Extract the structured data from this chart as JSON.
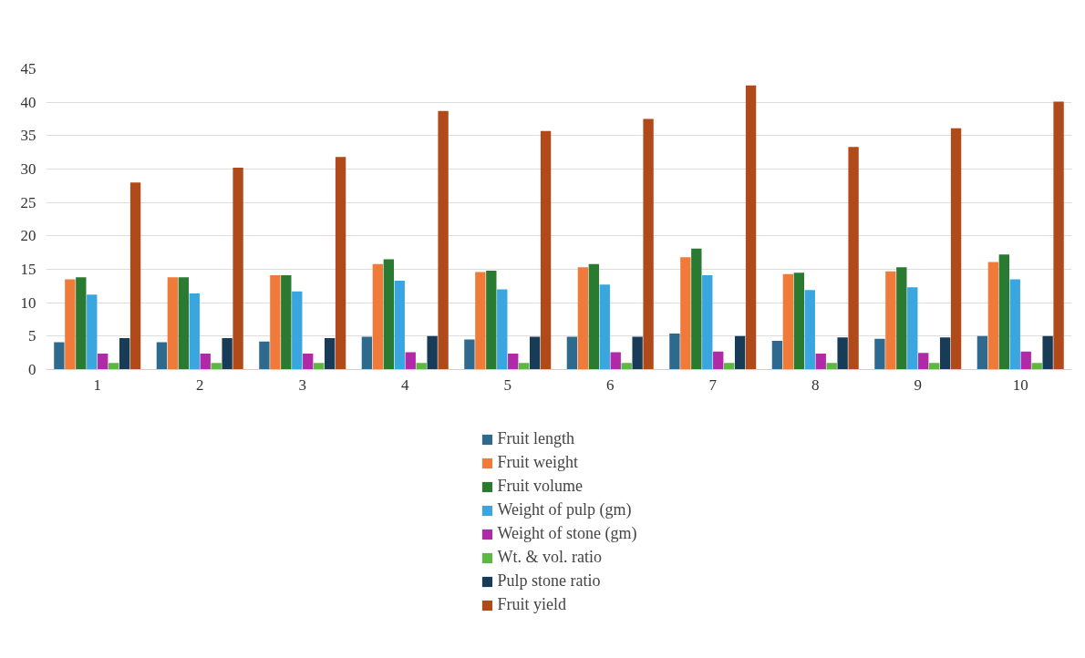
{
  "chart_data": {
    "type": "bar",
    "categories": [
      "1",
      "2",
      "3",
      "4",
      "5",
      "6",
      "7",
      "8",
      "9",
      "10"
    ],
    "series": [
      {
        "name": "Fruit length",
        "color": "#2e6a8e",
        "values": [
          4.1,
          4.1,
          4.2,
          4.9,
          4.5,
          4.9,
          5.4,
          4.3,
          4.6,
          5.0
        ]
      },
      {
        "name": "Fruit weight",
        "color": "#f07a3a",
        "values": [
          13.5,
          13.8,
          14.1,
          15.8,
          14.6,
          15.3,
          16.8,
          14.3,
          14.7,
          16.1
        ]
      },
      {
        "name": "Fruit volume",
        "color": "#2a7a32",
        "values": [
          13.8,
          13.8,
          14.1,
          16.5,
          14.8,
          15.8,
          18.1,
          14.5,
          15.3,
          17.2
        ]
      },
      {
        "name": "Weight of pulp (gm)",
        "color": "#3aa6e0",
        "values": [
          11.2,
          11.4,
          11.7,
          13.3,
          12.0,
          12.7,
          14.1,
          11.9,
          12.3,
          13.5
        ]
      },
      {
        "name": "Weight of stone (gm)",
        "color": "#b02aa8",
        "values": [
          2.4,
          2.4,
          2.4,
          2.6,
          2.4,
          2.6,
          2.7,
          2.4,
          2.5,
          2.7
        ]
      },
      {
        "name": "Wt. & vol. ratio",
        "color": "#5cb840",
        "values": [
          1.0,
          1.0,
          1.0,
          1.0,
          1.0,
          1.0,
          1.0,
          1.0,
          1.0,
          1.0
        ]
      },
      {
        "name": "Pulp stone ratio",
        "color": "#183c58",
        "values": [
          4.7,
          4.7,
          4.7,
          5.0,
          4.9,
          4.9,
          5.0,
          4.8,
          4.8,
          5.0
        ]
      },
      {
        "name": "Fruit yield",
        "color": "#b04a1a",
        "values": [
          28.0,
          30.2,
          31.8,
          38.7,
          35.7,
          37.5,
          42.5,
          33.3,
          36.1,
          40.1
        ]
      }
    ],
    "ylim": [
      0,
      45
    ],
    "yticks": [
      0,
      5,
      10,
      15,
      20,
      25,
      30,
      35,
      40,
      45
    ],
    "grid": "y",
    "legend": "bottom"
  }
}
